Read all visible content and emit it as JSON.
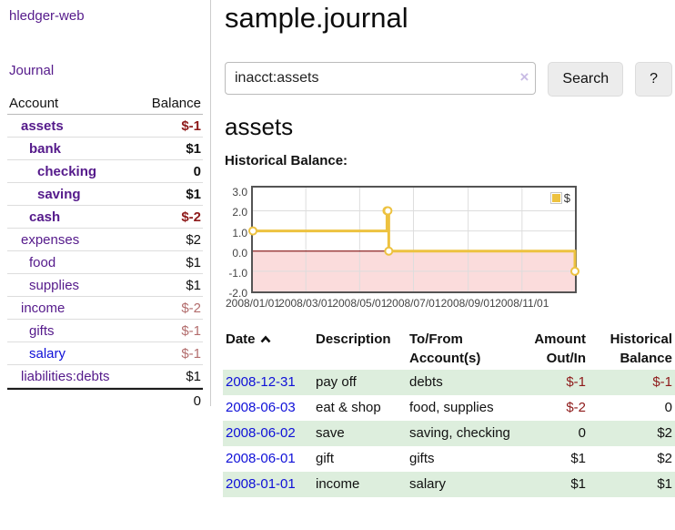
{
  "app": {
    "brand": "hledger-web",
    "nav_journal": "Journal"
  },
  "sidebar": {
    "header": {
      "account": "Account",
      "balance": "Balance"
    },
    "accounts": [
      {
        "name": "assets",
        "balance": "$-1",
        "depth": 1,
        "bold": true,
        "balance_style": "red",
        "name_style": "purple"
      },
      {
        "name": "bank",
        "balance": "$1",
        "depth": 2,
        "bold": true,
        "balance_style": "black",
        "name_style": "purple"
      },
      {
        "name": "checking",
        "balance": "0",
        "depth": 3,
        "bold": true,
        "balance_style": "black",
        "name_style": "purple"
      },
      {
        "name": "saving",
        "balance": "$1",
        "depth": 3,
        "bold": true,
        "balance_style": "black",
        "name_style": "purple"
      },
      {
        "name": "cash",
        "balance": "$-2",
        "depth": 2,
        "bold": true,
        "balance_style": "red",
        "name_style": "purple"
      },
      {
        "name": "expenses",
        "balance": "$2",
        "depth": 1,
        "bold": false,
        "balance_style": "black",
        "name_style": "purple"
      },
      {
        "name": "food",
        "balance": "$1",
        "depth": 2,
        "bold": false,
        "balance_style": "black",
        "name_style": "purple"
      },
      {
        "name": "supplies",
        "balance": "$1",
        "depth": 2,
        "bold": false,
        "balance_style": "black",
        "name_style": "purple"
      },
      {
        "name": "income",
        "balance": "$-2",
        "depth": 1,
        "bold": false,
        "balance_style": "muted",
        "name_style": "purple"
      },
      {
        "name": "gifts",
        "balance": "$-1",
        "depth": 2,
        "bold": false,
        "balance_style": "muted",
        "name_style": "purple"
      },
      {
        "name": "salary",
        "balance": "$-1",
        "depth": 2,
        "bold": false,
        "balance_style": "muted",
        "name_style": "blue"
      },
      {
        "name": "liabilities:debts",
        "balance": "$1",
        "depth": 1,
        "bold": false,
        "balance_style": "black",
        "name_style": "purple"
      }
    ],
    "total": "0"
  },
  "main": {
    "title": "sample.journal",
    "search": {
      "value": "inacct:assets",
      "clear_icon": "×",
      "button_label": "Search",
      "help_label": "?"
    },
    "account_heading": "assets",
    "chart_heading": "Historical Balance:"
  },
  "chart_data": {
    "type": "line",
    "title": "Historical Balance:",
    "step": true,
    "series": [
      {
        "name": "$",
        "color": "#edc240",
        "points": [
          [
            "2008-01-01",
            1
          ],
          [
            "2008-06-01",
            2
          ],
          [
            "2008-06-02",
            2
          ],
          [
            "2008-06-03",
            0
          ],
          [
            "2008-12-31",
            -1
          ]
        ]
      }
    ],
    "x_ticks": [
      "2008/01/01",
      "2008/03/01",
      "2008/05/01",
      "2008/07/01",
      "2008/09/01",
      "2008/11/01"
    ],
    "y_ticks": [
      "3.0",
      "2.0",
      "1.0",
      "0.0",
      "-1.0",
      "-2.0"
    ],
    "ylim": [
      -2.0,
      3.15
    ],
    "x_start": "2008-01-01",
    "x_end": "2008-12-31",
    "grid": true,
    "legend": {
      "label": "$",
      "position": "top-right"
    },
    "colors": {
      "line": "#edc240",
      "negative_region": "#fbdcdc",
      "zero_line": "#8b1a1a",
      "gridline": "#ddd",
      "plot_border": "#545454"
    }
  },
  "register": {
    "headers": {
      "date": "Date",
      "description": "Description",
      "account": "To/From Account(s)",
      "amount": "Amount Out/In",
      "balance": "Historical Balance"
    },
    "rows": [
      {
        "date": "2008-12-31",
        "description": "pay off",
        "accounts": "debts",
        "amount": "$-1",
        "amount_neg": true,
        "balance": "$-1",
        "balance_neg": true,
        "highlight": true
      },
      {
        "date": "2008-06-03",
        "description": "eat & shop",
        "accounts": "food, supplies",
        "amount": "$-2",
        "amount_neg": true,
        "balance": "0",
        "balance_neg": false,
        "highlight": false
      },
      {
        "date": "2008-06-02",
        "description": "save",
        "accounts": "saving, checking",
        "amount": "0",
        "amount_neg": false,
        "balance": "$2",
        "balance_neg": false,
        "highlight": true
      },
      {
        "date": "2008-06-01",
        "description": "gift",
        "accounts": "gifts",
        "amount": "$1",
        "amount_neg": false,
        "balance": "$2",
        "balance_neg": false,
        "highlight": false
      },
      {
        "date": "2008-01-01",
        "description": "income",
        "accounts": "salary",
        "amount": "$1",
        "amount_neg": false,
        "balance": "$1",
        "balance_neg": false,
        "highlight": true
      }
    ]
  }
}
